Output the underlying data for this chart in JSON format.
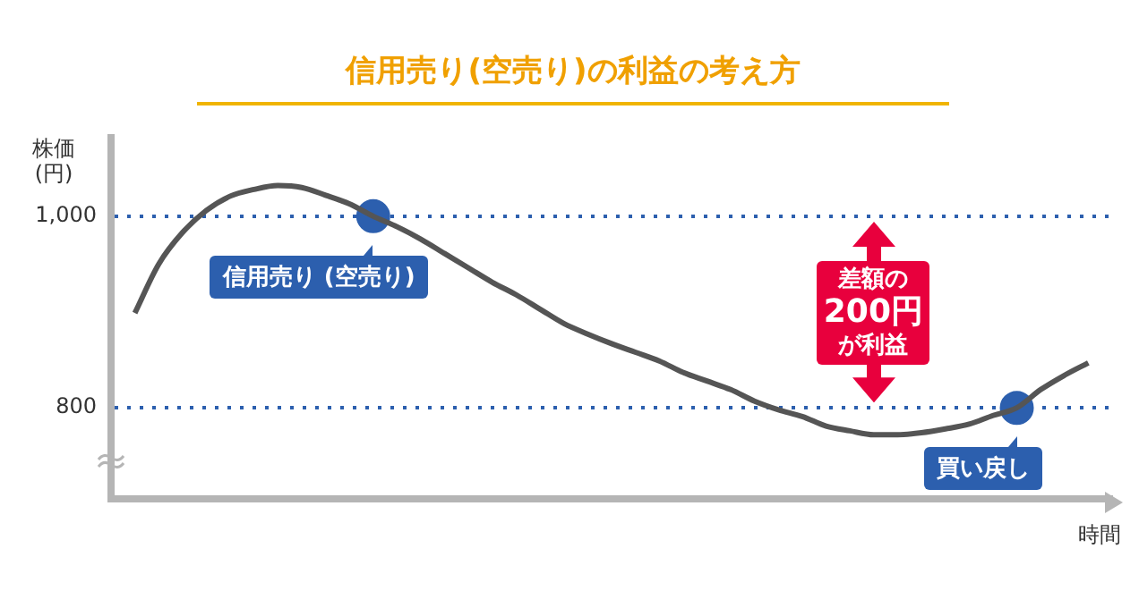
{
  "chart_data": {
    "type": "line",
    "title": "信用売り(空売り)の利益の考え方",
    "ylabel": "株価\n(円)",
    "xlabel": "時間",
    "categories": [
      null,
      null,
      null,
      null,
      null,
      null,
      null,
      null,
      null,
      null,
      null,
      null,
      null,
      null,
      null,
      null,
      null,
      null,
      null,
      null,
      null,
      null,
      null,
      null,
      null,
      null,
      null,
      null,
      null,
      null,
      null,
      null,
      null,
      null,
      null,
      null,
      null,
      null,
      null,
      null,
      null,
      null,
      null
    ],
    "ylim": [
      705,
      1082
    ],
    "yticks": [
      {
        "value": 1000,
        "label": "1,000"
      },
      800
    ],
    "grid": "y",
    "legend": false,
    "tick_labels": "y",
    "series": [
      {
        "color": "#555555",
        "values": [
          null,
          899,
          950,
          983,
          1006,
          1021,
          1028,
          1032,
          1030,
          1022,
          1013,
          1000,
          989,
          976,
          961,
          946,
          931,
          918,
          903,
          888,
          877,
          867,
          858,
          849,
          837,
          828,
          819,
          807,
          798,
          791,
          781,
          776,
          772,
          772,
          774,
          778,
          783,
          792,
          800,
          819,
          834,
          847,
          null
        ]
      },
      {
        "type": "scatter",
        "color": "#2c5fae",
        "values": [
          null,
          null,
          null,
          null,
          null,
          null,
          null,
          null,
          null,
          null,
          null,
          1000,
          null,
          null,
          null,
          null,
          null,
          null,
          null,
          null,
          null,
          null,
          null,
          null,
          null,
          null,
          null,
          null,
          null,
          null,
          null,
          null,
          null,
          null,
          null,
          null,
          null,
          null,
          800,
          null,
          null,
          null,
          null
        ]
      }
    ],
    "annotations": [
      "信用売り (空売り)",
      "買い戻し",
      "差額の",
      "200円",
      "が利益"
    ]
  }
}
